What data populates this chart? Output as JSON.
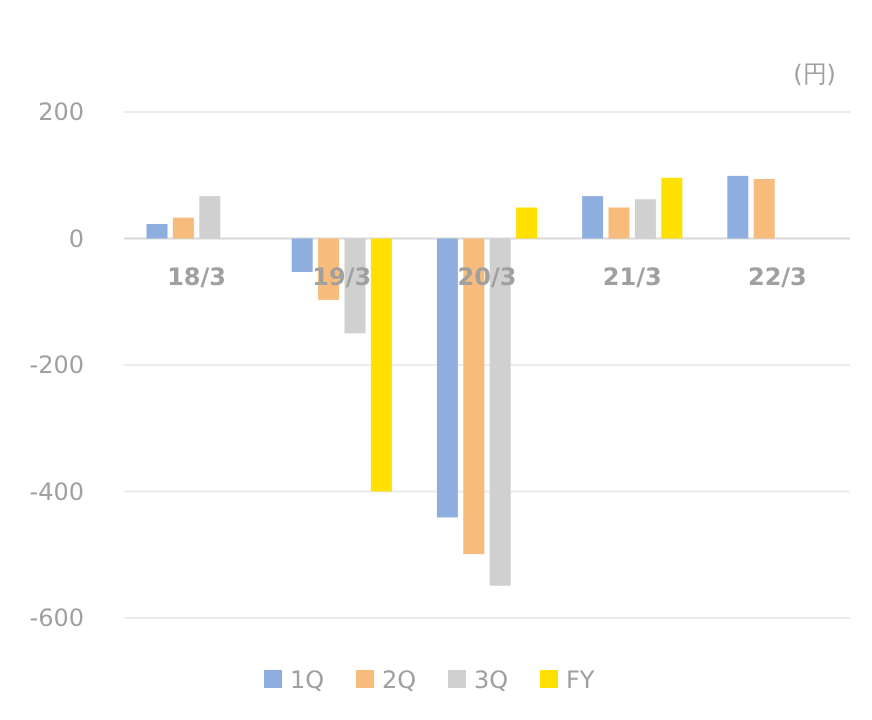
{
  "chart_data": {
    "type": "bar",
    "ylabel": "(円)",
    "categories": [
      "18/3",
      "19/3",
      "20/3",
      "21/3",
      "22/3"
    ],
    "series": [
      {
        "name": "1Q",
        "color": "#8faee0",
        "values": [
          23,
          -53,
          -441,
          67,
          99
        ]
      },
      {
        "name": "2Q",
        "color": "#f7bb7b",
        "values": [
          33,
          -97,
          -499,
          49,
          94
        ]
      },
      {
        "name": "3Q",
        "color": "#d0d0d0",
        "values": [
          67,
          -150,
          -549,
          62,
          null
        ]
      },
      {
        "name": "FY",
        "color": "#ffe000",
        "values": [
          null,
          -400,
          49,
          96,
          null
        ]
      }
    ],
    "ylim": [
      -600,
      200
    ],
    "yticks": [
      -600,
      -400,
      -200,
      0,
      200
    ],
    "grid": "y",
    "legend": "bottom"
  }
}
